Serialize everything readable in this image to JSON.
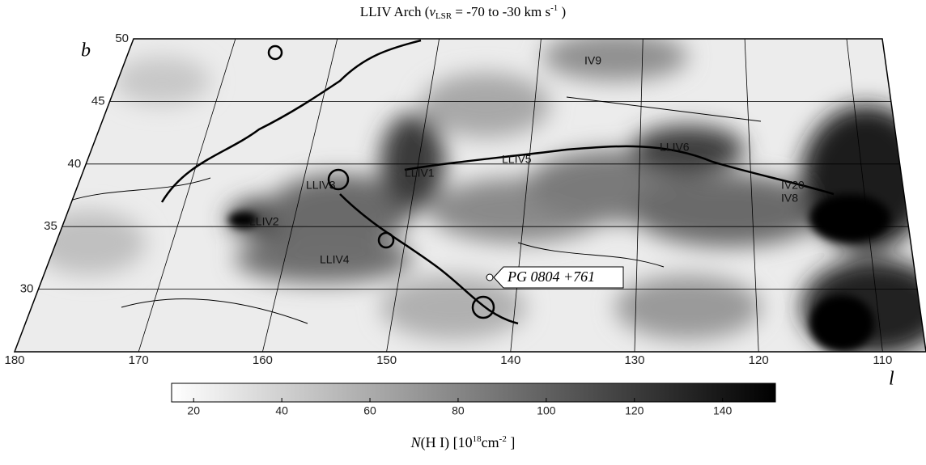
{
  "chart_data": {
    "type": "map",
    "title_parts": [
      "LLIV Arch  (",
      "v",
      "LSR",
      " = -70 to -30 km s",
      "-1",
      " )"
    ],
    "x_label": "l",
    "y_label": "b",
    "xlim": [
      180,
      106.5
    ],
    "ylim": [
      25,
      50
    ],
    "xticks": [
      180,
      170,
      160,
      150,
      140,
      130,
      120,
      110
    ],
    "yticks": [
      30,
      35,
      40,
      45,
      50
    ],
    "grid": true,
    "annotations": [
      "IV9",
      "LLIV6",
      "LLIV5",
      "LLIV1",
      "LLIV3",
      "IV20",
      "IV8",
      "LLIV2",
      "LLIV4"
    ],
    "target": "PG 0804 +761",
    "colorbar": {
      "clim": [
        15,
        152
      ],
      "ticks": [
        20,
        40,
        60,
        80,
        100,
        120,
        140
      ],
      "label_parts": [
        "N",
        "(H I) [10",
        "18",
        "cm",
        "-2",
        " ]"
      ]
    }
  }
}
